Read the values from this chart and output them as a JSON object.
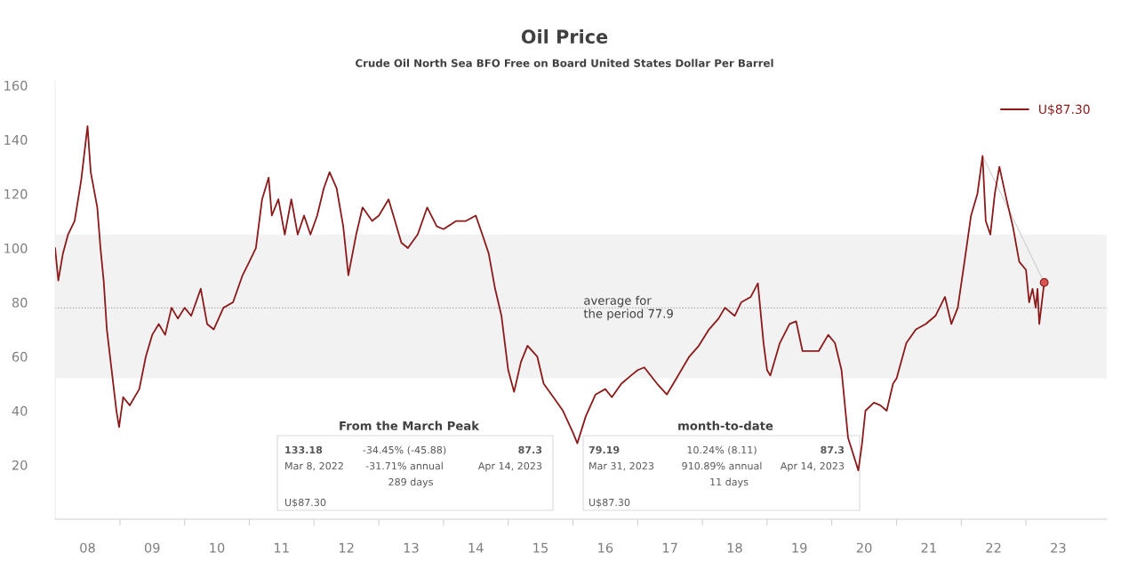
{
  "chart_data": {
    "type": "line",
    "title": "Oil Price",
    "subtitle": "Crude Oil North Sea BFO Free on Board United States Dollar Per Barrel",
    "x": [
      "2008-01-01",
      "2008-01-19",
      "2008-02-14",
      "2008-03-14",
      "2008-04-20",
      "2008-05-27",
      "2008-06-14",
      "2008-07-02",
      "2008-07-20",
      "2008-08-26",
      "2008-09-13",
      "2008-10-01",
      "2008-10-19",
      "2008-11-24",
      "2008-12-12",
      "2008-12-27",
      "2009-01-19",
      "2009-02-25",
      "2009-04-20",
      "2009-05-27",
      "2009-07-02",
      "2009-08-08",
      "2009-09-13",
      "2009-10-19",
      "2009-11-24",
      "2010-01-01",
      "2010-02-07",
      "2010-04-02",
      "2010-05-08",
      "2010-06-14",
      "2010-08-08",
      "2010-10-01",
      "2010-11-24",
      "2011-01-01",
      "2011-02-07",
      "2011-03-14",
      "2011-04-20",
      "2011-05-08",
      "2011-06-14",
      "2011-07-20",
      "2011-08-26",
      "2011-10-01",
      "2011-11-06",
      "2011-12-12",
      "2012-01-19",
      "2012-02-25",
      "2012-03-29",
      "2012-05-08",
      "2012-06-14",
      "2012-07-13",
      "2012-08-26",
      "2012-10-01",
      "2012-11-24",
      "2013-01-01",
      "2013-02-25",
      "2013-04-02",
      "2013-05-08",
      "2013-06-14",
      "2013-08-08",
      "2013-10-01",
      "2013-11-24",
      "2014-01-01",
      "2014-03-14",
      "2014-05-08",
      "2014-07-02",
      "2014-08-08",
      "2014-09-13",
      "2014-10-19",
      "2014-11-24",
      "2015-01-01",
      "2015-02-03",
      "2015-03-14",
      "2015-04-20",
      "2015-06-14",
      "2015-07-20",
      "2015-09-13",
      "2015-11-06",
      "2016-01-01",
      "2016-01-26",
      "2016-03-14",
      "2016-05-08",
      "2016-07-02",
      "2016-08-08",
      "2016-10-01",
      "2016-11-24",
      "2017-01-01",
      "2017-02-07",
      "2017-04-20",
      "2017-06-14",
      "2017-08-08",
      "2017-10-19",
      "2017-12-12",
      "2018-02-07",
      "2018-04-02",
      "2018-05-08",
      "2018-07-02",
      "2018-08-08",
      "2018-10-01",
      "2018-11-10",
      "2018-12-12",
      "2019-01-01",
      "2019-01-19",
      "2019-03-14",
      "2019-05-08",
      "2019-06-14",
      "2019-07-20",
      "2019-08-26",
      "2019-10-19",
      "2019-12-12",
      "2020-01-19",
      "2020-02-25",
      "2020-04-02",
      "2020-05-30",
      "2020-06-20",
      "2020-07-09",
      "2020-08-26",
      "2020-10-01",
      "2020-11-06",
      "2020-12-12",
      "2021-01-01",
      "2021-02-25",
      "2021-04-20",
      "2021-06-14",
      "2021-08-08",
      "2021-10-01",
      "2021-11-06",
      "2021-12-12",
      "2022-01-19",
      "2022-02-25",
      "2022-04-02",
      "2022-05-01",
      "2022-05-19",
      "2022-06-14",
      "2022-07-09",
      "2022-08-04",
      "2022-09-13",
      "2022-10-19",
      "2022-11-24",
      "2023-01-01",
      "2023-01-19",
      "2023-02-07",
      "2023-02-25",
      "2023-03-07",
      "2023-03-17",
      "2023-04-14"
    ],
    "series": [
      {
        "name": "U$87.30",
        "color": "#8b1a1a",
        "values": [
          100,
          88,
          98,
          105,
          110,
          125,
          135,
          145,
          128,
          115,
          100,
          88,
          70,
          50,
          40,
          34,
          45,
          42,
          48,
          60,
          68,
          72,
          68,
          78,
          74,
          78,
          75,
          85,
          72,
          70,
          78,
          80,
          90,
          95,
          100,
          118,
          126,
          112,
          118,
          105,
          118,
          105,
          112,
          105,
          112,
          122,
          128,
          122,
          108,
          90,
          105,
          115,
          110,
          112,
          118,
          110,
          102,
          100,
          105,
          115,
          108,
          107,
          110,
          110,
          112,
          105,
          98,
          85,
          75,
          55,
          47,
          58,
          64,
          60,
          50,
          45,
          40,
          32,
          28,
          38,
          46,
          48,
          45,
          50,
          53,
          55,
          56,
          50,
          46,
          52,
          60,
          64,
          70,
          74,
          78,
          75,
          80,
          82,
          87,
          65,
          55,
          53,
          65,
          72,
          73,
          62,
          62,
          62,
          68,
          65,
          55,
          30,
          18,
          28,
          40,
          43,
          42,
          40,
          50,
          52,
          65,
          70,
          72,
          75,
          82,
          72,
          78,
          95,
          112,
          120,
          134,
          110,
          105,
          120,
          130,
          118,
          108,
          95,
          92,
          80,
          85,
          78,
          85,
          72,
          87.3
        ]
      },
      {
        "type": "line",
        "color": "#cfcfcf",
        "x": [
          "2022-05-01",
          "2023-04-14"
        ],
        "values": [
          134,
          87.3
        ]
      },
      {
        "type": "scatter",
        "color": "#d9534f",
        "marker": "circle",
        "x": [
          "2023-04-14"
        ],
        "values": [
          87.3
        ]
      }
    ],
    "ylim": [
      0,
      162
    ],
    "yticks": [
      20,
      40,
      60,
      80,
      100,
      120,
      140,
      160
    ],
    "xlim": [
      "2008-01-01",
      "2024-04-01"
    ],
    "xticks": [
      {
        "value": "2008-07-02",
        "label": "08"
      },
      {
        "value": "2009-07-02",
        "label": "09"
      },
      {
        "value": "2010-07-02",
        "label": "10"
      },
      {
        "value": "2011-07-02",
        "label": "11"
      },
      {
        "value": "2012-07-02",
        "label": "12"
      },
      {
        "value": "2013-07-02",
        "label": "13"
      },
      {
        "value": "2014-07-02",
        "label": "14"
      },
      {
        "value": "2015-07-02",
        "label": "15"
      },
      {
        "value": "2016-07-02",
        "label": "16"
      },
      {
        "value": "2017-07-02",
        "label": "17"
      },
      {
        "value": "2018-07-02",
        "label": "18"
      },
      {
        "value": "2019-07-02",
        "label": "19"
      },
      {
        "value": "2020-07-02",
        "label": "20"
      },
      {
        "value": "2021-07-02",
        "label": "21"
      },
      {
        "value": "2022-07-02",
        "label": "22"
      },
      {
        "value": "2023-07-02",
        "label": "23"
      },
      {
        "value": "2009-01-01",
        "label": null
      },
      {
        "value": "2010-01-01",
        "label": null
      },
      {
        "value": "2011-01-01",
        "label": null
      },
      {
        "value": "2012-01-01",
        "label": null
      },
      {
        "value": "2013-01-01",
        "label": null
      },
      {
        "value": "2014-01-01",
        "label": null
      },
      {
        "value": "2015-01-01",
        "label": null
      },
      {
        "value": "2016-01-01",
        "label": null
      },
      {
        "value": "2017-01-01",
        "label": null
      },
      {
        "value": "2018-01-01",
        "label": null
      },
      {
        "value": "2019-01-01",
        "label": null
      },
      {
        "value": "2020-01-01",
        "label": null
      },
      {
        "value": "2021-01-01",
        "label": null
      },
      {
        "value": "2022-01-01",
        "label": null
      },
      {
        "value": "2023-01-01",
        "label": null
      }
    ],
    "ref_lines": [
      {
        "axis": "y",
        "value": 77.9,
        "label": "average for\nthe period 77.9",
        "color": "#a6a6a6",
        "line_style": "dotted"
      }
    ],
    "bands": [
      {
        "axis": "y",
        "from": 52,
        "to": 105,
        "color": "#f2f2f2"
      }
    ],
    "annotations": [
      "From the March Peak",
      "133.18",
      "Mar 8, 2022",
      "-34.45% (-45.88)",
      "-31.71% annual",
      "289 days",
      "87.3",
      "Apr 14, 2023",
      "U$87.30",
      "month-to-date",
      "79.19",
      "Mar 31, 2023",
      "10.24% (8.11)",
      "910.89% annual",
      "11 days",
      "87.3",
      "Apr 14, 2023",
      "U$87.30"
    ],
    "grid": false,
    "legend": "top right",
    "marker": "none",
    "line_style": "solid"
  }
}
